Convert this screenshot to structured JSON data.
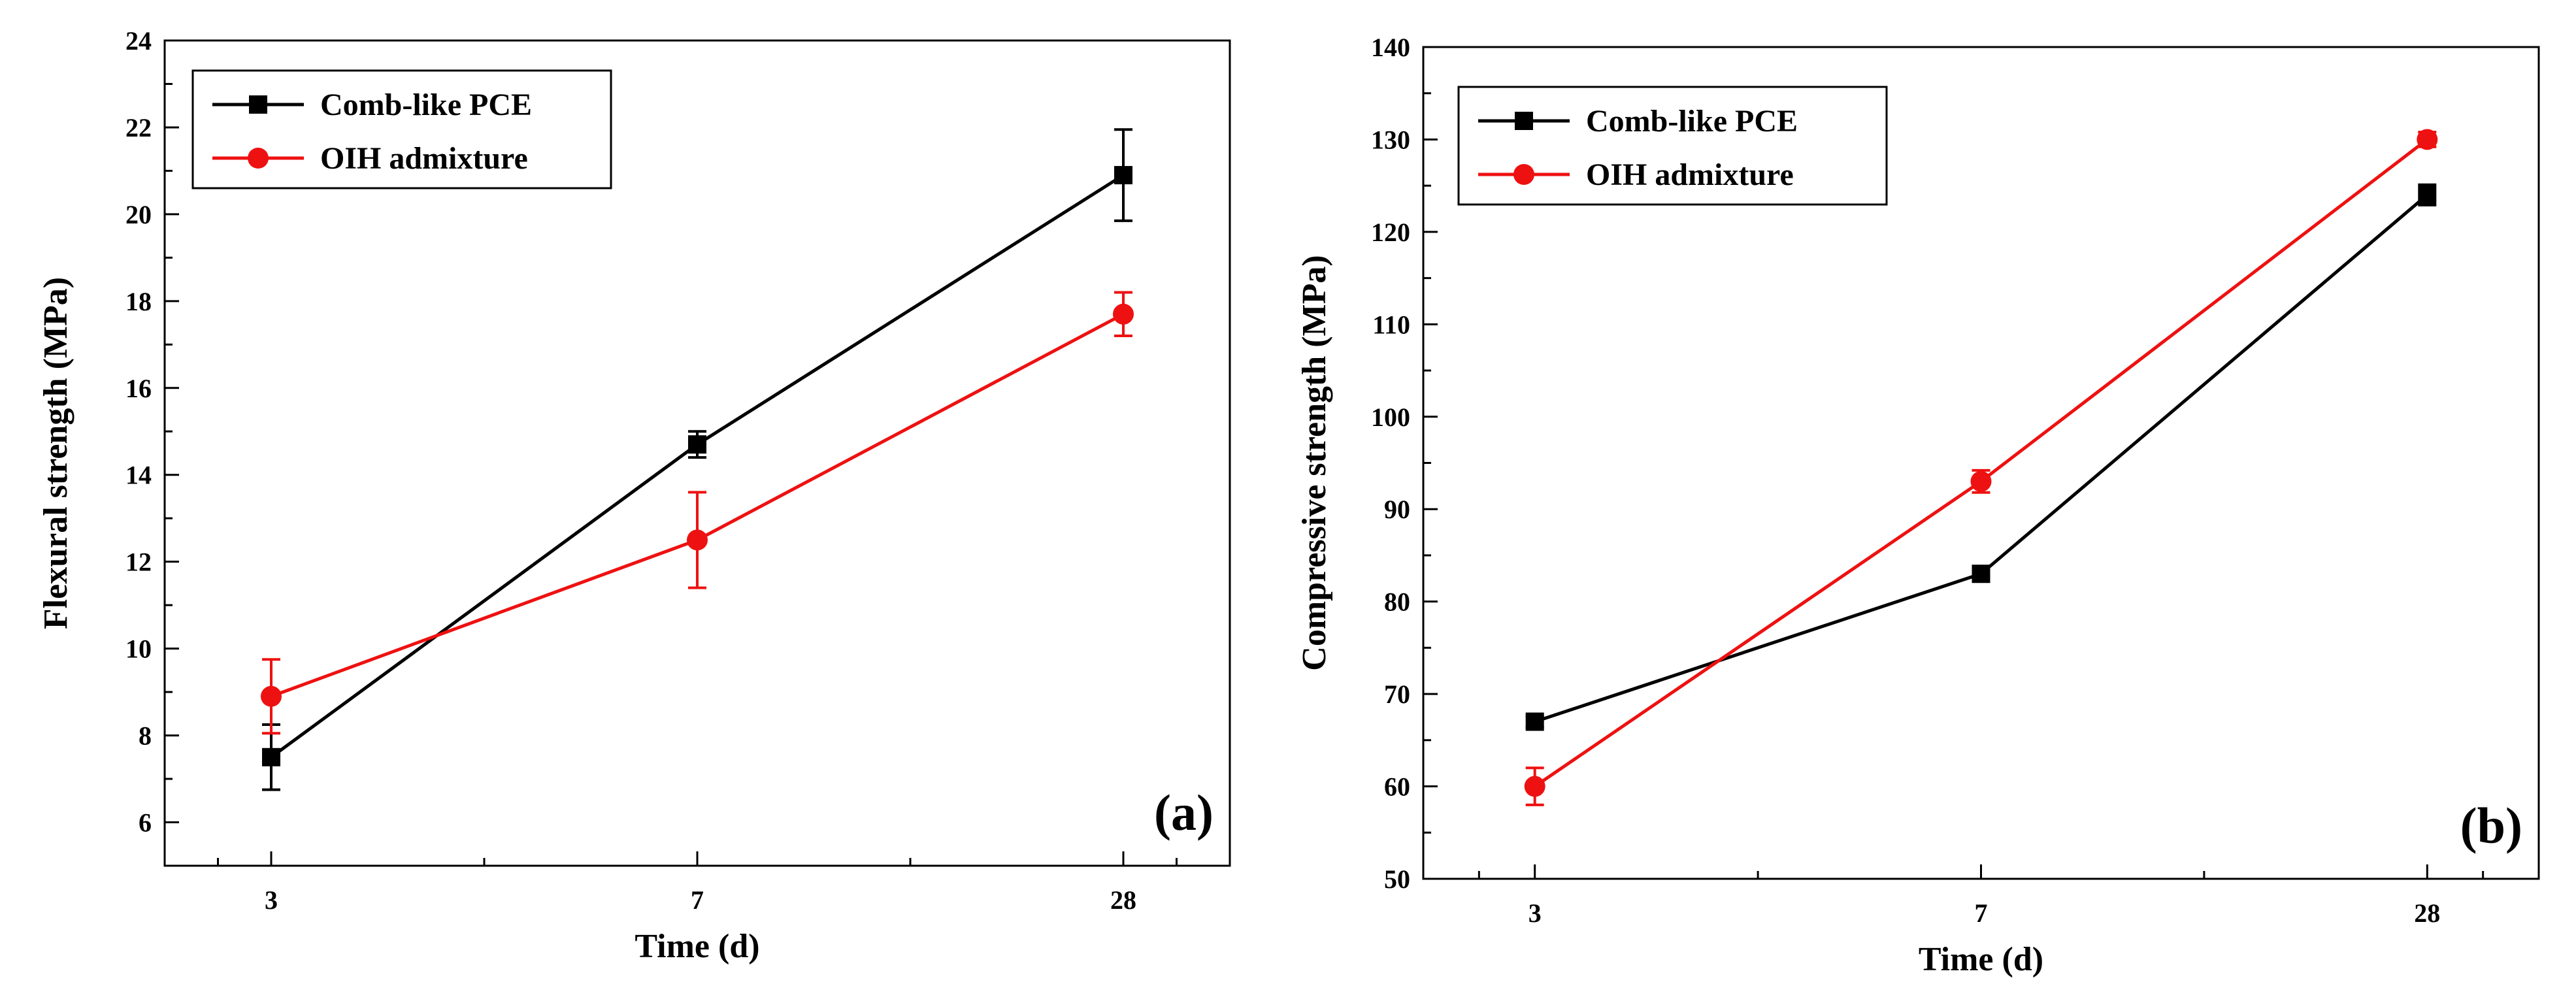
{
  "chart_data": [
    {
      "type": "line",
      "panel_label": "(a)",
      "xlabel": "Time (d)",
      "ylabel": "Flexural strength (MPa)",
      "categories": [
        "3",
        "7",
        "28"
      ],
      "ylim": [
        5,
        24
      ],
      "yticks": [
        6,
        8,
        10,
        12,
        14,
        16,
        18,
        20,
        22,
        24
      ],
      "grid": false,
      "legend_position": "top-left",
      "series": [
        {
          "name": "Comb-like PCE",
          "color": "#000000",
          "marker": "square",
          "values": [
            7.5,
            14.7,
            20.9
          ],
          "errors": [
            0.75,
            0.3,
            1.05
          ]
        },
        {
          "name": "OIH admixture",
          "color": "#ee1111",
          "marker": "circle",
          "values": [
            8.9,
            12.5,
            17.7
          ],
          "errors": [
            0.85,
            1.1,
            0.5
          ]
        }
      ]
    },
    {
      "type": "line",
      "panel_label": "(b)",
      "xlabel": "Time (d)",
      "ylabel": "Compressive strength (MPa)",
      "categories": [
        "3",
        "7",
        "28"
      ],
      "ylim": [
        50,
        140
      ],
      "yticks": [
        50,
        60,
        70,
        80,
        90,
        100,
        110,
        120,
        130,
        140
      ],
      "grid": false,
      "legend_position": "top-left",
      "series": [
        {
          "name": "Comb-like PCE",
          "color": "#000000",
          "marker": "square",
          "values": [
            67,
            83,
            124
          ],
          "errors": [
            0.6,
            0.5,
            1.1
          ]
        },
        {
          "name": "OIH admixture",
          "color": "#ee1111",
          "marker": "circle",
          "values": [
            60,
            93,
            130
          ],
          "errors": [
            2.0,
            1.2,
            0.8
          ]
        }
      ]
    }
  ]
}
